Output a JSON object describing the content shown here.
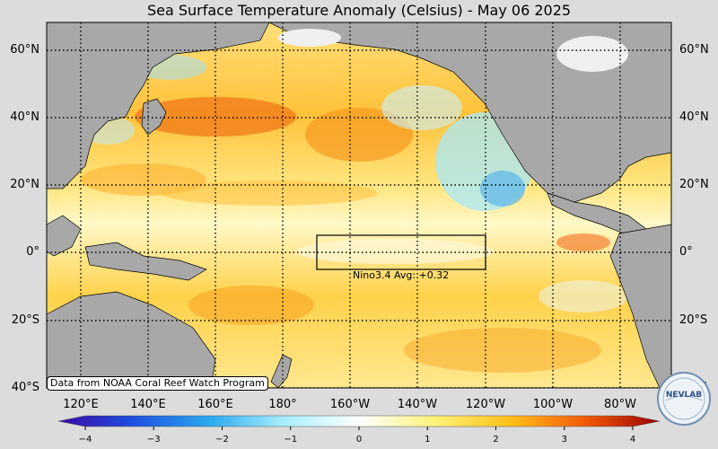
{
  "title": "Sea Surface Temperature Anomaly (Celsius) - May 06 2025",
  "map": {
    "lat_labels": [
      "60°N",
      "40°N",
      "20°N",
      "0°",
      "20°S",
      "40°S"
    ],
    "lon_labels": [
      "120°E",
      "140°E",
      "160°E",
      "180°",
      "160°W",
      "140°W",
      "120°W",
      "100°W",
      "80°W"
    ],
    "colors": {
      "land": "#a8a8a8",
      "background": "#dcdcdc",
      "grid": "#000000",
      "box": "#000000"
    },
    "nino_box": {
      "label": "Nino3.4 Avg: +0.32",
      "value": 0.32
    }
  },
  "colorbar": {
    "min": -4,
    "max": 4,
    "ticks": [
      "−4",
      "−3",
      "−2",
      "−1",
      "0",
      "1",
      "2",
      "3",
      "4"
    ],
    "stops": [
      "#3b0aa6",
      "#1f4fe0",
      "#2aa8f0",
      "#a8eefc",
      "#ffffff",
      "#fff27a",
      "#ffc21a",
      "#f25a0a",
      "#9a0000"
    ]
  },
  "credit": "Data from NOAA Coral Reef Watch Program",
  "logo": {
    "text": "NEVLAB",
    "icon": "globe-icon"
  }
}
